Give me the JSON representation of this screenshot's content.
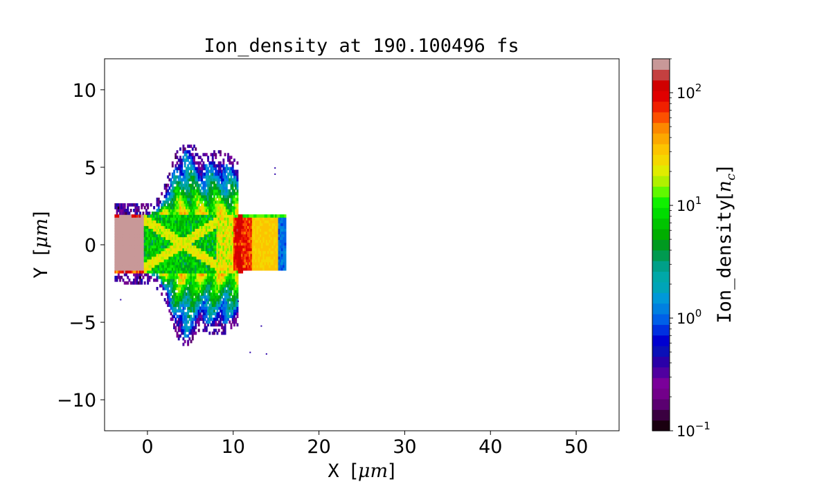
{
  "chart_data": {
    "type": "heatmap",
    "title": "Ion_density at 190.100496 fs",
    "xlabel": {
      "text": "X",
      "unit_prefix": "[",
      "unit": "μm",
      "unit_suffix": "]"
    },
    "ylabel": {
      "text": "Y",
      "unit_prefix": "[",
      "unit": "μm",
      "unit_suffix": "]"
    },
    "xlim": [
      -5,
      55
    ],
    "ylim": [
      -12,
      12
    ],
    "xticks": [
      0,
      10,
      20,
      30,
      40,
      50
    ],
    "xtick_labels": [
      "0",
      "10",
      "20",
      "30",
      "40",
      "50"
    ],
    "yticks": [
      -10,
      -5,
      0,
      5,
      10
    ],
    "ytick_labels": [
      "−10",
      "−5",
      "0",
      "5",
      "10"
    ],
    "grid": false,
    "colorbar": {
      "label": "Ion_density",
      "label_unit": "n",
      "label_unit_sub": "c",
      "scale": "log",
      "range": [
        0.1,
        200
      ],
      "ticks": [
        {
          "base": "10",
          "exp": "−1",
          "value": 0.1
        },
        {
          "base": "10",
          "exp": "0",
          "value": 1
        },
        {
          "base": "10",
          "exp": "1",
          "value": 10
        },
        {
          "base": "10",
          "exp": "2",
          "value": 100
        }
      ],
      "colors": [
        "#1a0010",
        "#3a0040",
        "#5a0070",
        "#72008a",
        "#7a009a",
        "#5000a0",
        "#2a00a8",
        "#0a10b8",
        "#0000d0",
        "#0030e0",
        "#0060e8",
        "#0080e0",
        "#0098d8",
        "#00a4b8",
        "#00a8a8",
        "#00a088",
        "#009a50",
        "#009a20",
        "#00ae00",
        "#00c400",
        "#00dc00",
        "#10f000",
        "#60f800",
        "#b0f000",
        "#e0ec00",
        "#f4d800",
        "#fcc400",
        "#fca800",
        "#fc8800",
        "#fc5000",
        "#f02000",
        "#e00000",
        "#d00000",
        "#c44040",
        "#c89898"
      ]
    },
    "features": {
      "slab": {
        "x": [
          10,
          16
        ],
        "y": [
          -1.8,
          1.8
        ],
        "value": 30
      },
      "slab_edge": {
        "x": [
          10,
          12
        ],
        "value": 80
      },
      "plasma_cone": {
        "x": [
          -3.5,
          10
        ],
        "y": [
          -6.2,
          6.1
        ]
      }
    }
  }
}
